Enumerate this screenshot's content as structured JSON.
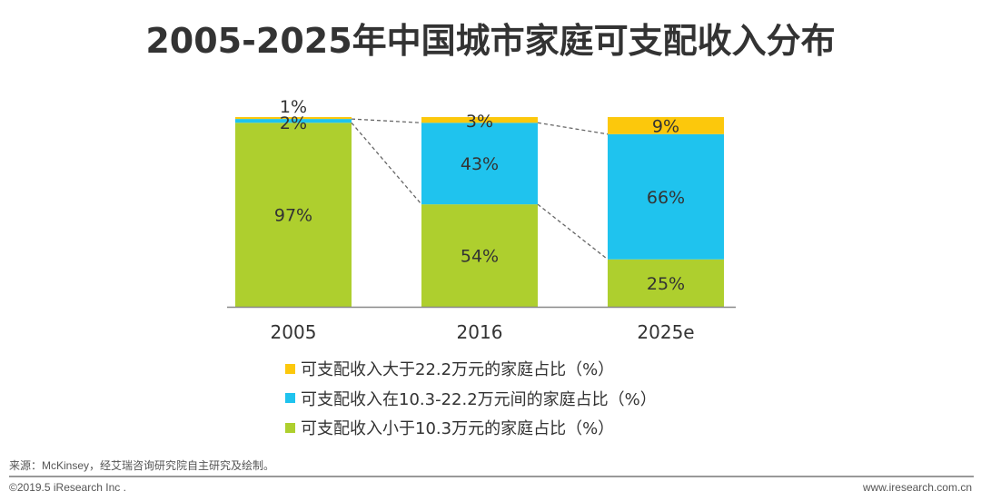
{
  "chart_data": {
    "type": "bar",
    "stacked": true,
    "title": "2005-2025年中国城市家庭可支配收入分布",
    "categories": [
      "2005",
      "2016",
      "2025e"
    ],
    "ylim": [
      0,
      100
    ],
    "grid": false,
    "legend_position": "bottom",
    "series": [
      {
        "name": "可支配收入小于10.3万元的家庭占比（%）",
        "color": "#AECF2E",
        "values": [
          97,
          54,
          25
        ]
      },
      {
        "name": "可支配收入在10.3-22.2万元间的家庭占比（%）",
        "color": "#1FC3EE",
        "values": [
          2,
          43,
          66
        ]
      },
      {
        "name": "可支配收入大于22.2万元的家庭占比（%）",
        "color": "#FCC80C",
        "values": [
          1,
          3,
          9
        ]
      }
    ],
    "data_labels": [
      [
        "97%",
        "2%",
        "1%"
      ],
      [
        "54%",
        "43%",
        "3%"
      ],
      [
        "25%",
        "66%",
        "9%"
      ]
    ]
  },
  "footer": {
    "source": "来源：McKinsey，经艾瑞咨询研究院自主研究及绘制。",
    "copyright": "©2019.5 iResearch Inc .",
    "website": "www.iresearch.com.cn"
  }
}
